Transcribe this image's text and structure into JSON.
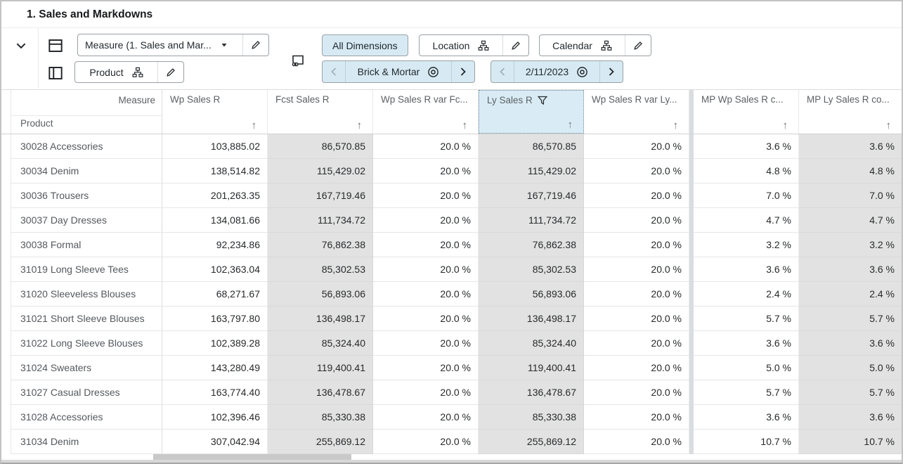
{
  "window": {
    "title": "1. Sales and Markdowns"
  },
  "toolbar": {
    "measure_axis": {
      "label": "Measure (1. Sales and Mar..."
    },
    "row_axis": {
      "label": "Product"
    },
    "all_dimensions_label": "All Dimensions",
    "location": {
      "label": "Location"
    },
    "calendar": {
      "label": "Calendar"
    },
    "location_page": {
      "value": "Brick & Mortar"
    },
    "calendar_page": {
      "value": "2/11/2023"
    }
  },
  "icons": {
    "sort_ascending": "↑"
  },
  "colors": {
    "selection_blue": "#d7eaf3",
    "selected_header_blue": "#d9ecf5",
    "shaded_cell_gray": "#e2e2e2",
    "column_group_divider": "#d9dde0",
    "toolbar_border": "#9aa0a5"
  },
  "grid": {
    "corner": {
      "column_axis_label": "Measure",
      "row_axis_label": "Product"
    },
    "columns": [
      {
        "label": "Wp Sales R",
        "shaded": false,
        "selected": false,
        "filtered": false
      },
      {
        "label": "Fcst Sales R",
        "shaded": true,
        "selected": false,
        "filtered": false
      },
      {
        "label": "Wp Sales R var Fc...",
        "shaded": false,
        "selected": false,
        "filtered": false
      },
      {
        "label": "Ly Sales R",
        "shaded": true,
        "selected": true,
        "filtered": true
      },
      {
        "label": "Wp Sales R var Ly...",
        "shaded": false,
        "selected": false,
        "filtered": false
      },
      {
        "label": "MP Wp Sales R c...",
        "shaded": false,
        "selected": false,
        "filtered": false,
        "group_start": true
      },
      {
        "label": "MP Ly Sales R co...",
        "shaded": true,
        "selected": false,
        "filtered": false
      }
    ],
    "rows": [
      {
        "label": "30028 Accessories",
        "values": [
          "103,885.02",
          "86,570.85",
          "20.0 %",
          "86,570.85",
          "20.0 %",
          "3.6 %",
          "3.6 %"
        ]
      },
      {
        "label": "30034 Denim",
        "values": [
          "138,514.82",
          "115,429.02",
          "20.0 %",
          "115,429.02",
          "20.0 %",
          "4.8 %",
          "4.8 %"
        ]
      },
      {
        "label": "30036 Trousers",
        "values": [
          "201,263.35",
          "167,719.46",
          "20.0 %",
          "167,719.46",
          "20.0 %",
          "7.0 %",
          "7.0 %"
        ]
      },
      {
        "label": "30037 Day Dresses",
        "values": [
          "134,081.66",
          "111,734.72",
          "20.0 %",
          "111,734.72",
          "20.0 %",
          "4.7 %",
          "4.7 %"
        ]
      },
      {
        "label": "30038 Formal",
        "values": [
          "92,234.86",
          "76,862.38",
          "20.0 %",
          "76,862.38",
          "20.0 %",
          "3.2 %",
          "3.2 %"
        ]
      },
      {
        "label": "31019 Long Sleeve Tees",
        "values": [
          "102,363.04",
          "85,302.53",
          "20.0 %",
          "85,302.53",
          "20.0 %",
          "3.6 %",
          "3.6 %"
        ]
      },
      {
        "label": "31020 Sleeveless Blouses",
        "values": [
          "68,271.67",
          "56,893.06",
          "20.0 %",
          "56,893.06",
          "20.0 %",
          "2.4 %",
          "2.4 %"
        ]
      },
      {
        "label": "31021 Short Sleeve Blouses",
        "values": [
          "163,797.80",
          "136,498.17",
          "20.0 %",
          "136,498.17",
          "20.0 %",
          "5.7 %",
          "5.7 %"
        ]
      },
      {
        "label": "31022 Long Sleeve Blouses",
        "values": [
          "102,389.28",
          "85,324.40",
          "20.0 %",
          "85,324.40",
          "20.0 %",
          "3.6 %",
          "3.6 %"
        ]
      },
      {
        "label": "31024 Sweaters",
        "values": [
          "143,280.49",
          "119,400.41",
          "20.0 %",
          "119,400.41",
          "20.0 %",
          "5.0 %",
          "5.0 %"
        ]
      },
      {
        "label": "31027 Casual Dresses",
        "values": [
          "163,774.40",
          "136,478.67",
          "20.0 %",
          "136,478.67",
          "20.0 %",
          "5.7 %",
          "5.7 %"
        ]
      },
      {
        "label": "31028 Accessories",
        "values": [
          "102,396.46",
          "85,330.38",
          "20.0 %",
          "85,330.38",
          "20.0 %",
          "3.6 %",
          "3.6 %"
        ]
      },
      {
        "label": "31034 Denim",
        "values": [
          "307,042.94",
          "255,869.12",
          "20.0 %",
          "255,869.12",
          "20.0 %",
          "10.7 %",
          "10.7 %"
        ]
      }
    ]
  }
}
